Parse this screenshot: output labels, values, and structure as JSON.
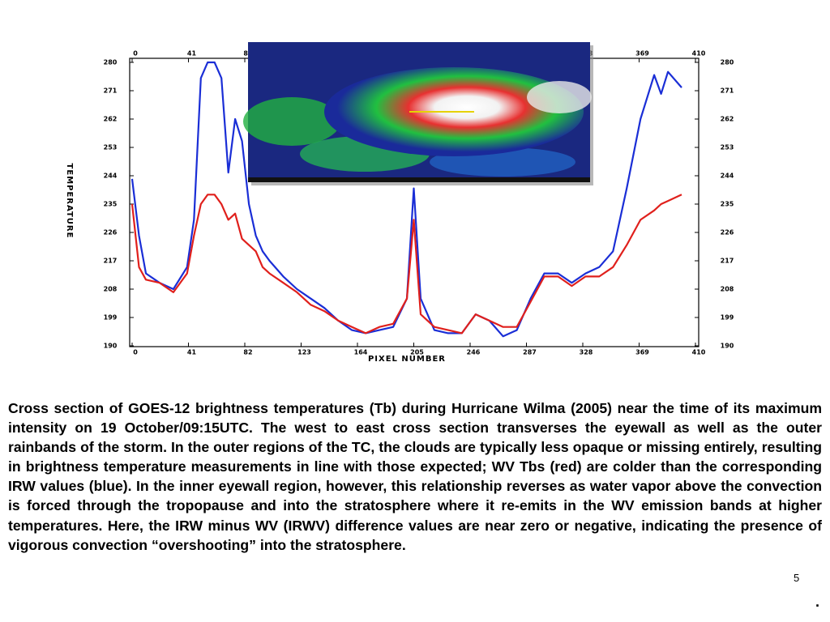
{
  "chart_data": {
    "type": "line",
    "x_label": "PIXEL NUMBER",
    "y_label": "TEMPERATURE",
    "x": [
      0,
      5,
      10,
      20,
      30,
      40,
      45,
      50,
      55,
      60,
      65,
      70,
      75,
      80,
      85,
      90,
      95,
      100,
      110,
      120,
      130,
      140,
      150,
      160,
      170,
      180,
      190,
      200,
      205,
      210,
      220,
      230,
      240,
      250,
      260,
      270,
      280,
      290,
      300,
      310,
      320,
      330,
      340,
      350,
      360,
      370,
      380,
      385,
      390,
      400
    ],
    "series": [
      {
        "color": "#1a2ed6",
        "values": [
          243,
          225,
          213,
          210,
          208,
          215,
          230,
          275,
          280,
          280,
          275,
          245,
          262,
          255,
          235,
          225,
          220,
          217,
          212,
          208,
          205,
          202,
          198,
          195,
          194,
          195,
          196,
          205,
          240,
          205,
          195,
          194,
          194,
          200,
          198,
          193,
          195,
          205,
          213,
          213,
          210,
          213,
          215,
          220,
          240,
          262,
          276,
          270,
          277,
          272
        ]
      },
      {
        "color": "#e0201c",
        "values": [
          235,
          215,
          211,
          210,
          207,
          213,
          225,
          235,
          238,
          238,
          235,
          230,
          232,
          224,
          222,
          220,
          215,
          213,
          210,
          207,
          203,
          201,
          198,
          196,
          194,
          196,
          197,
          205,
          230,
          200,
          196,
          195,
          194,
          200,
          198,
          196,
          196,
          204,
          212,
          212,
          209,
          212,
          212,
          215,
          222,
          230,
          233,
          235,
          236,
          238
        ]
      }
    ],
    "xlim": [
      0,
      410
    ],
    "xticks": [
      0,
      41,
      82,
      123,
      164,
      205,
      246,
      287,
      328,
      369,
      410
    ],
    "ylim": [
      190,
      280
    ],
    "yticks": [
      190,
      199,
      208,
      217,
      226,
      235,
      244,
      253,
      262,
      271,
      280
    ]
  },
  "caption": "Cross section of GOES-12 brightness temperatures (Tb) during Hurricane Wilma (2005) near the time of its maximum intensity on 19 October/09:15UTC. The west to east cross section transverses the eyewall as well as the outer rainbands of the storm. In the outer regions of the TC, the clouds are typically less opaque or missing entirely, resulting in brightness temperature measurements in line with those expected; WV Tbs (red) are colder than the corresponding IRW values (blue). In the inner eyewall region, however, this relationship reverses as water vapor above the convection is forced through the tropopause and into the stratosphere where it re-emits in the WV emission bands at higher temperatures. Here, the IRW minus WV (IRWV) difference values are near zero or negative, indicating the presence of vigorous convection “overshooting” into the stratosphere.",
  "page_number": "5",
  "trailing_mark": "."
}
